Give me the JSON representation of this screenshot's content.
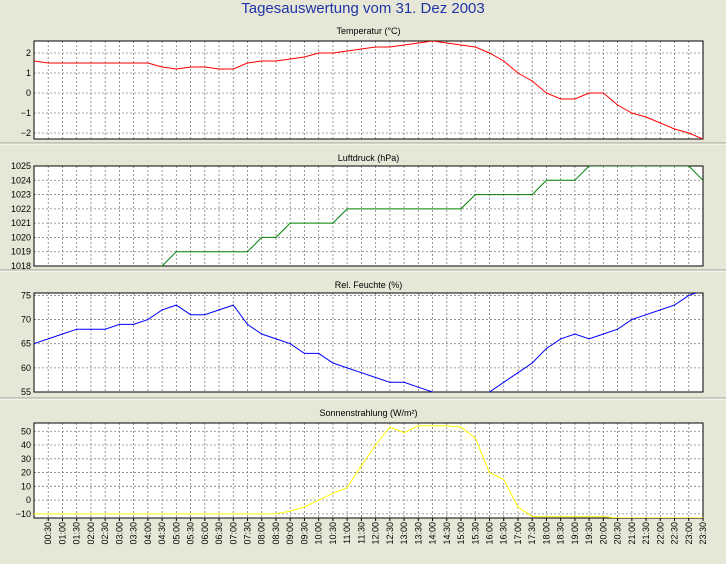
{
  "title": "Tagesauswertung vom 31. Dez 2003",
  "x_ticks": [
    "00:30",
    "01:00",
    "01:30",
    "02:00",
    "02:30",
    "03:00",
    "03:30",
    "04:00",
    "04:30",
    "05:00",
    "05:30",
    "06:00",
    "06:30",
    "07:00",
    "07:30",
    "08:00",
    "08:30",
    "09:00",
    "09:30",
    "10:00",
    "10:30",
    "11:00",
    "11:30",
    "12:00",
    "12:30",
    "13:00",
    "13:30",
    "14:00",
    "14:30",
    "15:00",
    "15:30",
    "16:00",
    "16:30",
    "17:00",
    "17:30",
    "18:00",
    "18:30",
    "19:00",
    "19:30",
    "20:00",
    "20:30",
    "21:00",
    "21:30",
    "22:00",
    "22:30",
    "23:00",
    "23:30"
  ],
  "chart_data": [
    {
      "type": "line",
      "title": "Temperatur (°C)",
      "color": "#ff0000",
      "ylim": [
        -2.3,
        2.6
      ],
      "yticks": [
        -2,
        -1,
        0,
        1,
        2
      ],
      "ytick_labels": [
        "−2",
        "−1",
        "0",
        "1",
        "2"
      ],
      "x": [
        "00:00",
        "00:30",
        "01:00",
        "01:30",
        "02:00",
        "02:30",
        "03:00",
        "03:30",
        "04:00",
        "04:30",
        "05:00",
        "05:30",
        "06:00",
        "06:30",
        "07:00",
        "07:30",
        "08:00",
        "08:30",
        "09:00",
        "09:30",
        "10:00",
        "10:30",
        "11:00",
        "11:30",
        "12:00",
        "12:30",
        "13:00",
        "13:30",
        "14:00",
        "14:30",
        "15:00",
        "15:30",
        "16:00",
        "16:30",
        "17:00",
        "17:30",
        "18:00",
        "18:30",
        "19:00",
        "19:30",
        "20:00",
        "20:30",
        "21:00",
        "21:30",
        "22:00",
        "22:30",
        "23:00",
        "23:30"
      ],
      "values": [
        1.6,
        1.5,
        1.5,
        1.5,
        1.5,
        1.5,
        1.5,
        1.5,
        1.5,
        1.3,
        1.2,
        1.3,
        1.3,
        1.2,
        1.2,
        1.5,
        1.6,
        1.6,
        1.7,
        1.8,
        2.0,
        2.0,
        2.1,
        2.2,
        2.3,
        2.3,
        2.4,
        2.5,
        2.6,
        2.5,
        2.4,
        2.3,
        2.0,
        1.6,
        1.0,
        0.6,
        0.0,
        -0.3,
        -0.3,
        0.0,
        0.0,
        -0.6,
        -1.0,
        -1.2,
        -1.5,
        -1.8,
        -2.0,
        -2.3
      ]
    },
    {
      "type": "line",
      "title": "Luftdruck (hPa)",
      "color": "#008000",
      "ylim": [
        1018,
        1025
      ],
      "yticks": [
        1018,
        1019,
        1020,
        1021,
        1022,
        1023,
        1024,
        1025
      ],
      "x": [
        "00:00",
        "04:30",
        "05:00",
        "07:30",
        "08:00",
        "08:30",
        "09:00",
        "10:30",
        "11:00",
        "15:00",
        "15:30",
        "17:30",
        "18:00",
        "19:00",
        "19:30",
        "23:00",
        "23:30"
      ],
      "values": [
        1017,
        1018,
        1019,
        1019,
        1020,
        1020,
        1021,
        1021,
        1022,
        1022,
        1023,
        1023,
        1024,
        1024,
        1025,
        1025,
        1024
      ]
    },
    {
      "type": "line",
      "title": "Rel. Feuchte (%)",
      "color": "#0000ff",
      "ylim": [
        55,
        75.5
      ],
      "yticks": [
        55,
        60,
        65,
        70,
        75
      ],
      "x": [
        "00:00",
        "00:30",
        "01:00",
        "01:30",
        "02:00",
        "02:30",
        "03:00",
        "03:30",
        "04:00",
        "04:30",
        "05:00",
        "05:30",
        "06:00",
        "06:30",
        "07:00",
        "07:30",
        "08:00",
        "08:30",
        "09:00",
        "09:30",
        "10:00",
        "10:30",
        "11:00",
        "11:30",
        "12:00",
        "12:30",
        "13:00",
        "13:30",
        "14:00",
        "14:30",
        "15:00",
        "15:30",
        "16:00",
        "16:30",
        "17:00",
        "17:30",
        "18:00",
        "18:30",
        "19:00",
        "19:30",
        "20:00",
        "20:30",
        "21:00",
        "21:30",
        "22:00",
        "22:30",
        "23:00",
        "23:30"
      ],
      "values": [
        65,
        66,
        67,
        68,
        68,
        68,
        69,
        69,
        70,
        72,
        73,
        71,
        71,
        72,
        73,
        69,
        67,
        66,
        65,
        63,
        63,
        61,
        60,
        59,
        58,
        57,
        57,
        56,
        55,
        54,
        54,
        54,
        55,
        57,
        59,
        61,
        64,
        66,
        67,
        66,
        67,
        68,
        70,
        71,
        72,
        73,
        75,
        76
      ]
    },
    {
      "type": "line",
      "title": "Sonnenstrahlung (W/m²)",
      "color": "#ffff00",
      "ylim": [
        -13,
        56
      ],
      "yticks": [
        -10,
        0,
        10,
        20,
        30,
        40,
        50
      ],
      "ytick_labels": [
        "−10",
        "0",
        "10",
        "20",
        "30",
        "40",
        "50"
      ],
      "x": [
        "00:00",
        "07:30",
        "08:00",
        "08:30",
        "09:00",
        "09:30",
        "10:00",
        "10:30",
        "11:00",
        "11:30",
        "12:00",
        "12:30",
        "13:00",
        "13:30",
        "14:00",
        "14:30",
        "15:00",
        "15:30",
        "16:00",
        "16:30",
        "17:00",
        "17:30",
        "20:00",
        "20:30",
        "23:30"
      ],
      "values": [
        -10,
        -10,
        -10,
        -10,
        -8,
        -5,
        0,
        5,
        9,
        25,
        40,
        53,
        49,
        54,
        54,
        54,
        53,
        45,
        20,
        15,
        -5,
        -12,
        -12,
        -13,
        -13
      ]
    }
  ]
}
